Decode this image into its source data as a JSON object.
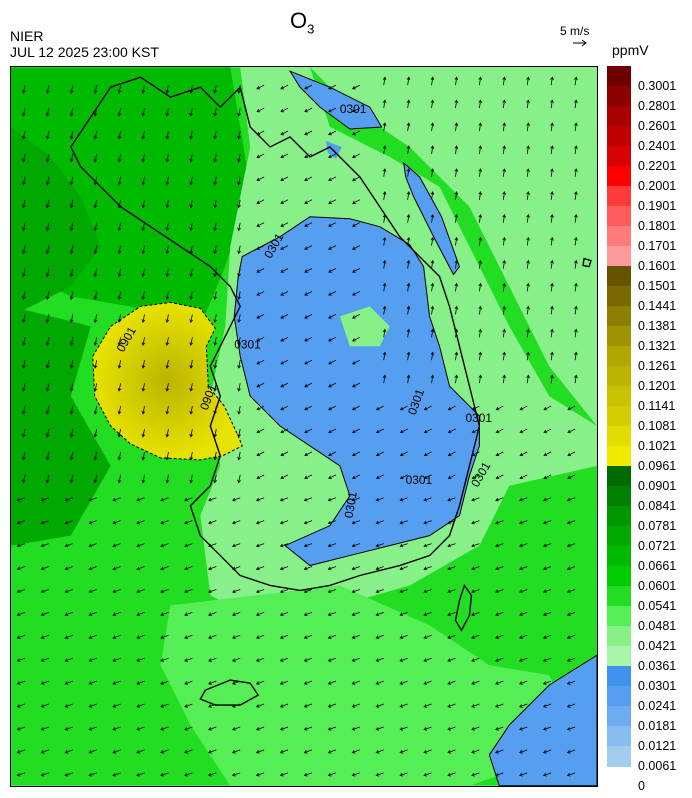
{
  "title_main": "O",
  "title_sub": "3",
  "agency": "NIER",
  "timestamp": "JUL 12 2025 23:00 KST",
  "wind_scale_label": "5 m/s",
  "unit": "ppmV",
  "legend": {
    "labels": [
      "0.3001",
      "0.2801",
      "0.2601",
      "0.2401",
      "0.2201",
      "0.2001",
      "0.1901",
      "0.1801",
      "0.1701",
      "0.1601",
      "0.1501",
      "0.1441",
      "0.1381",
      "0.1321",
      "0.1261",
      "0.1201",
      "0.1141",
      "0.1081",
      "0.1021",
      "0.0961",
      "0.0901",
      "0.0841",
      "0.0781",
      "0.0721",
      "0.0661",
      "0.0601",
      "0.0541",
      "0.0481",
      "0.0421",
      "0.0361",
      "0.0301",
      "0.0241",
      "0.0181",
      "0.0121",
      "0.0061",
      "0"
    ],
    "colors": [
      "#6e0000",
      "#8c0000",
      "#a80000",
      "#c00000",
      "#d80000",
      "#ff0000",
      "#ff3a3a",
      "#ff5c5c",
      "#ff7a7a",
      "#ff9a9a",
      "#675200",
      "#7a6800",
      "#8c7e00",
      "#9e9400",
      "#b0a800",
      "#bcb400",
      "#c8c200",
      "#d4ce00",
      "#e2dc00",
      "#f0ea00",
      "#006a00",
      "#008000",
      "#009600",
      "#00a800",
      "#00ba00",
      "#00cc00",
      "#22dd22",
      "#55ee55",
      "#88f088",
      "#aaf5aa",
      "#3f92ee",
      "#559ef0",
      "#6eacf0",
      "#88bcf0",
      "#a2ccee"
    ]
  },
  "contour_labels": [
    "0301",
    "0301",
    "0301",
    "0301",
    "0301",
    "0301",
    "0301",
    "0301",
    "0901",
    "0901"
  ]
}
